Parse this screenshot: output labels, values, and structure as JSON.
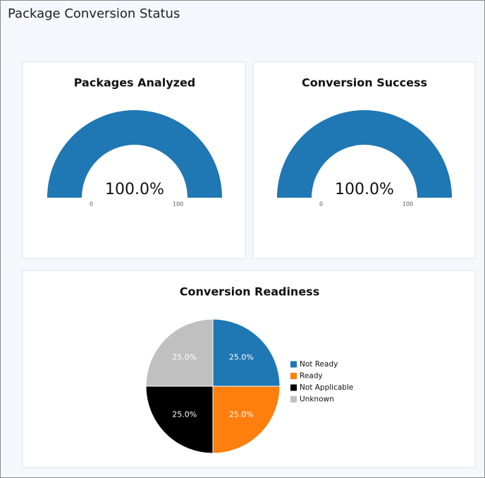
{
  "header": {
    "title": "Package Conversion Status"
  },
  "chart_data": [
    {
      "type": "gauge",
      "title": "Packages Analyzed",
      "value": 100,
      "value_label": "100.0%",
      "lim": [
        0,
        100
      ],
      "ticks": [
        0,
        100
      ],
      "color": "#1f77b4"
    },
    {
      "type": "gauge",
      "title": "Conversion Success",
      "value": 100,
      "value_label": "100.0%",
      "lim": [
        0,
        100
      ],
      "ticks": [
        0,
        100
      ],
      "color": "#1f77b4"
    },
    {
      "type": "pie",
      "title": "Conversion Readiness",
      "categories": [
        "Not Ready",
        "Ready",
        "Not Applicable",
        "Unknown"
      ],
      "values": [
        25,
        25,
        25,
        25
      ],
      "value_labels": [
        "25.0%",
        "25.0%",
        "25.0%",
        "25.0%"
      ],
      "colors": [
        "#1f77b4",
        "#ff7f0e",
        "#000000",
        "#c0c0c0"
      ],
      "legend": "right"
    }
  ]
}
